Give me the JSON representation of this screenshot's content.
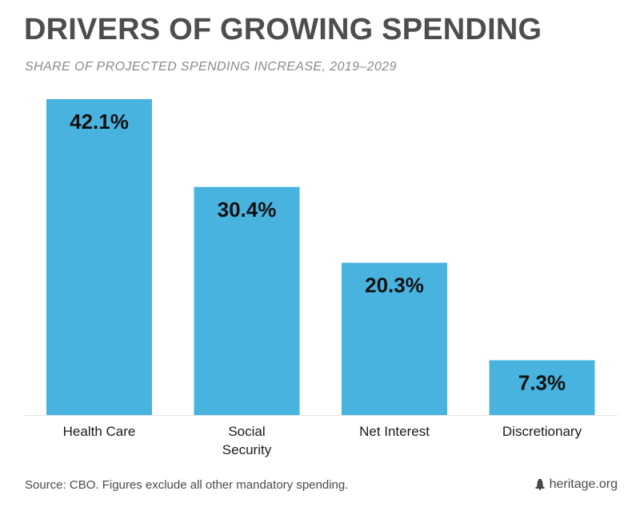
{
  "header": {
    "title": "DRIVERS OF GROWING SPENDING",
    "subtitle": "SHARE OF PROJECTED SPENDING INCREASE, 2019–2029"
  },
  "footer": {
    "source": "Source: CBO. Figures exclude all other mandatory spending.",
    "brand": "heritage.org",
    "brand_icon": "liberty-bell-icon"
  },
  "colors": {
    "bar": "#49b3e0",
    "label": "#111111",
    "axis": "#e6e6e6"
  },
  "chart_data": {
    "type": "bar",
    "categories": [
      [
        "Health Care"
      ],
      [
        "Social",
        "Security"
      ],
      [
        "Net Interest"
      ],
      [
        "Discretionary"
      ]
    ],
    "values": [
      42.1,
      30.4,
      20.3,
      7.3
    ],
    "data_labels": [
      "42.1%",
      "30.4%",
      "20.3%",
      "7.3%"
    ],
    "title": "DRIVERS OF GROWING SPENDING",
    "subtitle": "SHARE OF PROJECTED SPENDING INCREASE, 2019–2029",
    "ylim": [
      0,
      42.1
    ],
    "grid": false
  }
}
